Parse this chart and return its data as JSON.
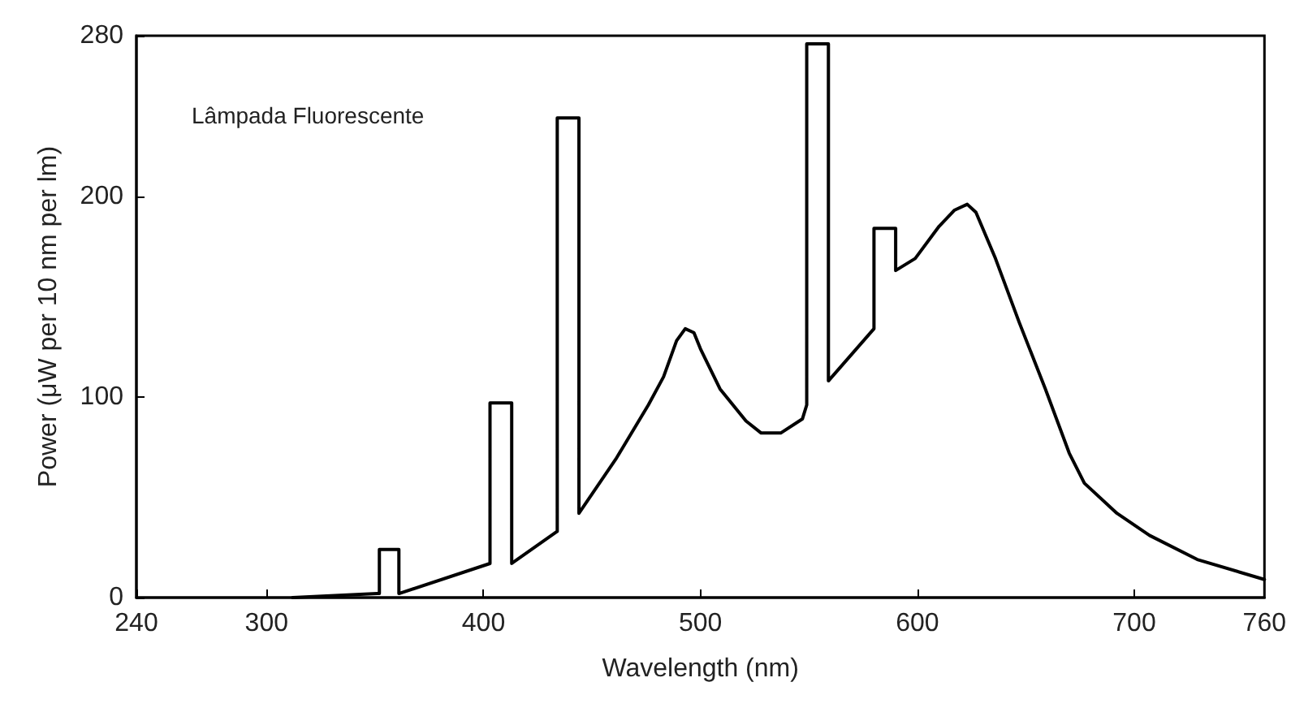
{
  "chart_data": {
    "type": "line",
    "xlabel": "Wavelength (nm)",
    "ylabel": "Power (μW per 10 nm per lm)",
    "annotations": [
      "Lâmpada Fluorescente"
    ],
    "series": [
      {
        "color": "#000000",
        "x": [
          312,
          351,
          352,
          352,
          361,
          361,
          403,
          403,
          413,
          413,
          434,
          434,
          444,
          444,
          461,
          476,
          483,
          489,
          493,
          497,
          500,
          509,
          521,
          528,
          537,
          547,
          549,
          549,
          559,
          559,
          580,
          580,
          590,
          590,
          599,
          610,
          617,
          623,
          627,
          636,
          647,
          659,
          670,
          677,
          692,
          707,
          729,
          760
        ],
        "values": [
          0,
          2,
          2,
          24,
          24,
          2,
          17,
          97,
          97,
          17,
          33,
          239,
          239,
          42,
          69,
          96,
          110,
          128,
          134,
          132,
          124,
          104,
          88,
          82,
          82,
          89,
          96,
          276,
          276,
          108,
          134,
          184,
          184,
          163,
          169,
          185,
          193,
          196,
          192,
          169,
          137,
          104,
          72,
          57,
          42,
          31,
          19,
          9
        ]
      }
    ],
    "xlim": [
      240,
      760
    ],
    "xticks": [
      240,
      300,
      400,
      500,
      600,
      700,
      760
    ],
    "ylim": [
      0,
      280
    ],
    "yticks": [
      0,
      100,
      200,
      280
    ],
    "grid": false,
    "marker": "none",
    "line_style": "solid"
  }
}
